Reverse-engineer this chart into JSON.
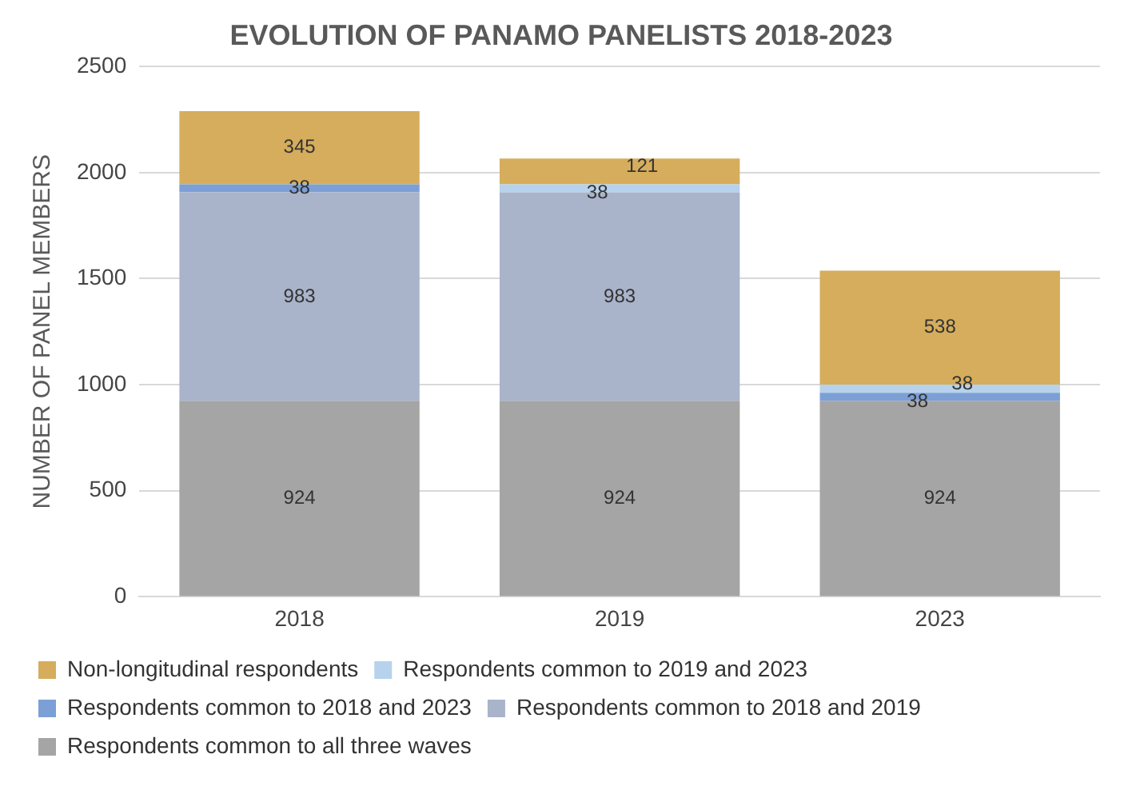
{
  "chart_data": {
    "type": "bar",
    "title": "EVOLUTION OF PANAMO PANELISTS 2018-2023",
    "ylabel": "NUMBER OF PANEL MEMBERS",
    "categories": [
      "2018",
      "2019",
      "2023"
    ],
    "stacked": true,
    "series": [
      {
        "name": "Respondents common to all three waves",
        "color": "#a5a5a5",
        "values": [
          924,
          924,
          924
        ],
        "value_labels": [
          "924",
          "924",
          "924"
        ]
      },
      {
        "name": "Respondents common to 2018 and 2019",
        "color": "#a9b4cb",
        "values": [
          983,
          983,
          0
        ],
        "value_labels": [
          "983",
          "983",
          null
        ]
      },
      {
        "name": "Respondents common to 2018 and 2023",
        "color": "#7c9fd6",
        "values": [
          38,
          0,
          38
        ],
        "value_labels": [
          "38",
          null,
          "38"
        ]
      },
      {
        "name": "Respondents common to 2019 and 2023",
        "color": "#b6d2ec",
        "values": [
          0,
          38,
          38
        ],
        "value_labels": [
          null,
          "38",
          "38"
        ]
      },
      {
        "name": "Non-longitudinal respondents",
        "color": "#d5ad5c",
        "values": [
          345,
          121,
          538
        ],
        "value_labels": [
          "345",
          "121",
          "538"
        ]
      }
    ],
    "ylim": [
      0,
      2500
    ],
    "yticks": [
      0,
      500,
      1000,
      1500,
      2000,
      2500
    ],
    "grid": "y",
    "legend": "bottom"
  }
}
